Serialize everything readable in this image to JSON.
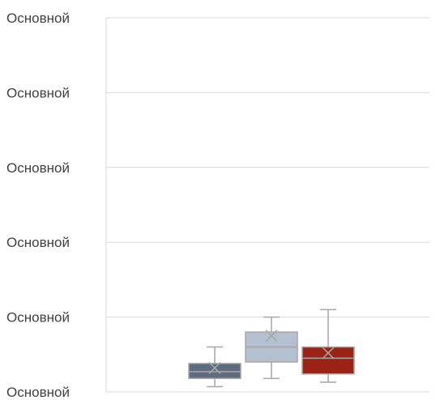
{
  "chart_data": {
    "type": "box",
    "title": "",
    "xlabel": "",
    "ylabel": "",
    "ylim": [
      0,
      500
    ],
    "grid": true,
    "y_ticks": [
      {
        "value": 0,
        "label": "Основной"
      },
      {
        "value": 100,
        "label": "Основной"
      },
      {
        "value": 200,
        "label": "Основной"
      },
      {
        "value": 300,
        "label": "Основной"
      },
      {
        "value": 400,
        "label": "Основной"
      },
      {
        "value": 500,
        "label": "Основной"
      }
    ],
    "series": [
      {
        "color": "#5f6b7f",
        "min": 7,
        "q1": 18,
        "median": 27,
        "q3": 38,
        "max": 60,
        "mean": 32
      },
      {
        "color": "#b4bfcf",
        "min": 18,
        "q1": 40,
        "median": 60,
        "q3": 80,
        "max": 100,
        "mean": 75
      },
      {
        "color": "#9a2315",
        "min": 13,
        "q1": 24,
        "median": 45,
        "q3": 60,
        "max": 110,
        "mean": 52
      }
    ],
    "colors": {
      "grid": "#d9d9d9",
      "axis": "#d9d9d9",
      "whisker": "#a6a6a6",
      "tick_text": "#404040"
    }
  }
}
